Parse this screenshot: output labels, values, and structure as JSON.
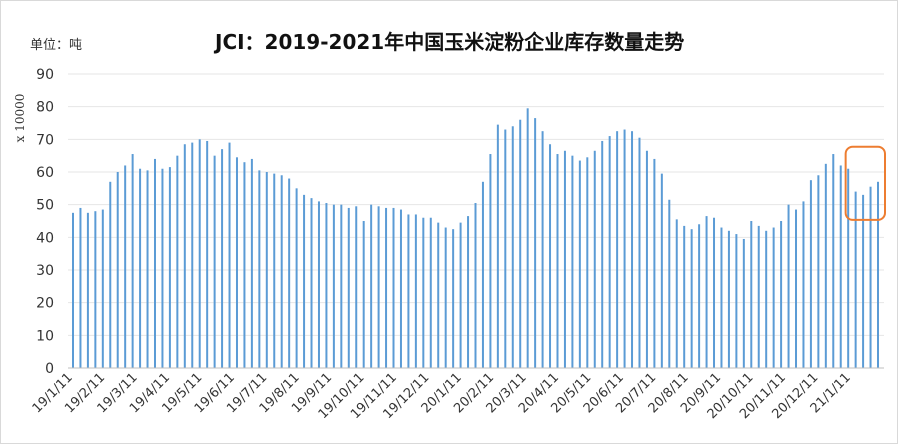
{
  "header": {
    "unit_label": "单位：吨",
    "title": "JCI：2019-2021年中国玉米淀粉企业库存数量走势"
  },
  "chart_data": {
    "type": "bar",
    "title": "JCI：2019-2021年中国玉米淀粉企业库存数量走势",
    "ylabel": "x 10000",
    "xlabel": "",
    "ylim": [
      0,
      90
    ],
    "yticks": [
      0,
      10,
      20,
      30,
      40,
      50,
      60,
      70,
      80,
      90
    ],
    "grid": true,
    "legend": "none",
    "bar_color": "#5b9bd5",
    "highlight_color": "#ed7d31",
    "x_tick_labels": [
      "19/1/11",
      "19/2/11",
      "19/3/11",
      "19/4/11",
      "19/5/11",
      "19/6/11",
      "19/7/11",
      "19/8/11",
      "19/9/11",
      "19/10/11",
      "19/11/11",
      "19/12/11",
      "20/1/11",
      "20/2/11",
      "20/3/11",
      "20/4/11",
      "20/5/11",
      "20/6/11",
      "20/7/11",
      "20/8/11",
      "20/9/11",
      "20/10/11",
      "20/11/11",
      "20/12/11",
      "21/1/11"
    ],
    "values": [
      47.5,
      49,
      47.5,
      48,
      48.5,
      57,
      60,
      62,
      65.5,
      61,
      60.5,
      64,
      61,
      61.5,
      65,
      68.5,
      69,
      70,
      69.5,
      65,
      67,
      69,
      64.5,
      63,
      64,
      60.5,
      60,
      59.5,
      59,
      58,
      55,
      53,
      52,
      51,
      50.5,
      50,
      50,
      49,
      49.5,
      45,
      50,
      49.5,
      49,
      49,
      48.5,
      47,
      47,
      46,
      46,
      44.5,
      43,
      42.5,
      44.5,
      46.5,
      50.5,
      57,
      65.5,
      74.5,
      73,
      74,
      76,
      79.5,
      76.5,
      72.5,
      68.5,
      65.5,
      66.5,
      65,
      63.5,
      64.5,
      66.5,
      69.5,
      71,
      72.5,
      73,
      72.5,
      70.5,
      66.5,
      64,
      59.5,
      51.5,
      45.5,
      43.5,
      42.5,
      44,
      46.5,
      46,
      43,
      42,
      41,
      39.5,
      45,
      43.5,
      42,
      43,
      45,
      50,
      48.5,
      51,
      57.5,
      59,
      62.5,
      65.5,
      62,
      61,
      54,
      53,
      55.5,
      57
    ],
    "highlight": {
      "from_index": 105,
      "to_index": 108
    }
  }
}
